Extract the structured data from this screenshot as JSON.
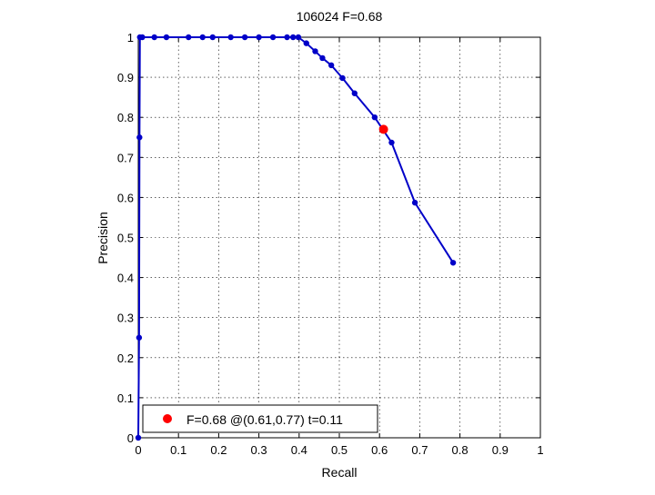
{
  "chart_data": {
    "type": "line",
    "title": "106024 F=0.68",
    "xlabel": "Recall",
    "ylabel": "Precision",
    "xlim": [
      0,
      1
    ],
    "ylim": [
      0,
      1
    ],
    "x_ticks": [
      0,
      0.1,
      0.2,
      0.3,
      0.4,
      0.5,
      0.6,
      0.7,
      0.8,
      0.9,
      1
    ],
    "y_ticks": [
      0,
      0.1,
      0.2,
      0.3,
      0.4,
      0.5,
      0.6,
      0.7,
      0.8,
      0.9,
      1
    ],
    "x_tick_labels": [
      "0",
      "0.1",
      "0.2",
      "0.3",
      "0.4",
      "0.5",
      "0.6",
      "0.7",
      "0.8",
      "0.9",
      "1"
    ],
    "y_tick_labels": [
      "0",
      "0.1",
      "0.2",
      "0.3",
      "0.4",
      "0.5",
      "0.6",
      "0.7",
      "0.8",
      "0.9",
      "1"
    ],
    "grid": true,
    "series": [
      {
        "color": "#0000c8",
        "points": [
          [
            0.0,
            0.0
          ],
          [
            0.002,
            0.25
          ],
          [
            0.003,
            0.75
          ],
          [
            0.004,
            1.0
          ],
          [
            0.01,
            1.0
          ],
          [
            0.04,
            1.0
          ],
          [
            0.07,
            1.0
          ],
          [
            0.125,
            1.0
          ],
          [
            0.16,
            1.0
          ],
          [
            0.185,
            1.0
          ],
          [
            0.23,
            1.0
          ],
          [
            0.265,
            1.0
          ],
          [
            0.3,
            1.0
          ],
          [
            0.335,
            1.0
          ],
          [
            0.37,
            1.0
          ],
          [
            0.385,
            1.0
          ],
          [
            0.398,
            1.0
          ],
          [
            0.418,
            0.985
          ],
          [
            0.44,
            0.965
          ],
          [
            0.458,
            0.948
          ],
          [
            0.48,
            0.93
          ],
          [
            0.508,
            0.898
          ],
          [
            0.538,
            0.86
          ],
          [
            0.588,
            0.8
          ],
          [
            0.63,
            0.737
          ],
          [
            0.688,
            0.587
          ],
          [
            0.783,
            0.437
          ]
        ]
      }
    ],
    "highlight": {
      "x": 0.61,
      "y": 0.77,
      "color": "#ff0000"
    },
    "legend": {
      "text": "F=0.68 @(0.61,0.77) t=0.11",
      "position": "bottom-left"
    }
  }
}
